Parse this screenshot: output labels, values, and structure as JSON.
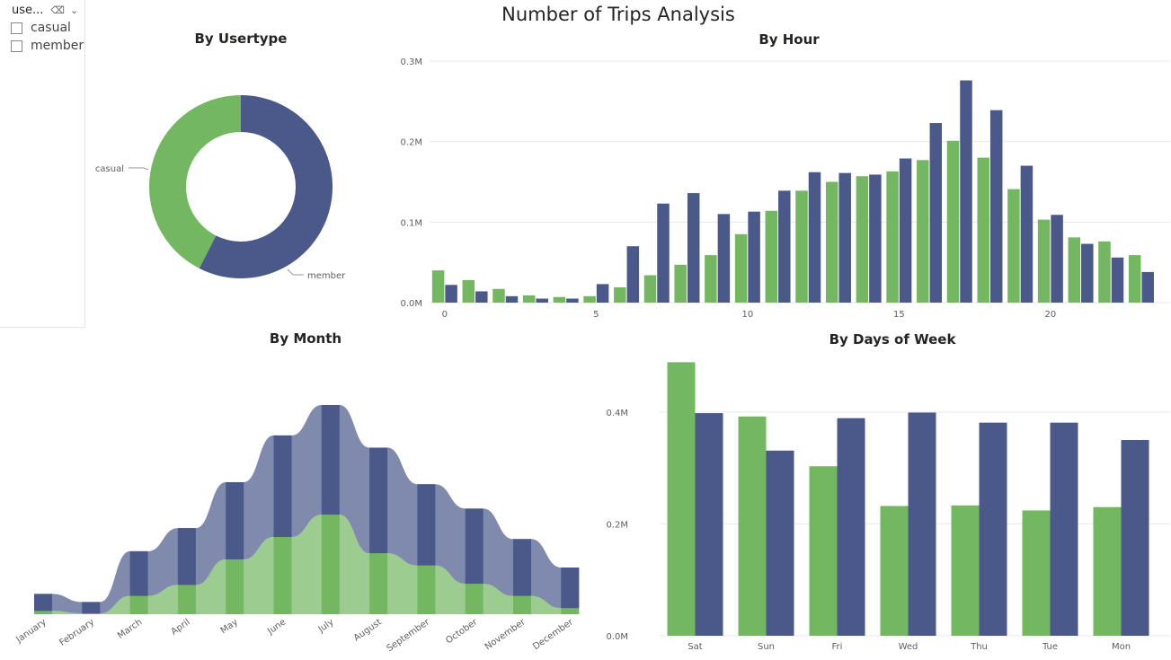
{
  "report": {
    "title": "Number of Trips Analysis"
  },
  "slicer": {
    "header": "use...",
    "items": [
      "casual",
      "member"
    ]
  },
  "colors": {
    "casual": "#73b761",
    "member": "#4a588a",
    "grid": "#e9e9e9",
    "axis_text": "#605e5c"
  },
  "chart_data": [
    {
      "id": "usertype",
      "type": "pie",
      "title": "By Usertype",
      "labels": [
        "casual",
        "member"
      ],
      "values": [
        2.55,
        3.45
      ],
      "legend": "data-labels"
    },
    {
      "id": "hour",
      "type": "bar",
      "title": "By Hour",
      "x": [
        0,
        1,
        2,
        3,
        4,
        5,
        6,
        7,
        8,
        9,
        10,
        11,
        12,
        13,
        14,
        15,
        16,
        17,
        18,
        19,
        20,
        21,
        22,
        23
      ],
      "xticks": [
        0,
        5,
        10,
        15,
        20
      ],
      "yticks": [
        "0.0M",
        "0.1M",
        "0.2M",
        "0.3M"
      ],
      "ylim": [
        0,
        0.3
      ],
      "series": [
        {
          "name": "casual",
          "values": [
            0.04,
            0.028,
            0.017,
            0.009,
            0.007,
            0.008,
            0.019,
            0.034,
            0.047,
            0.059,
            0.085,
            0.114,
            0.139,
            0.15,
            0.157,
            0.163,
            0.177,
            0.201,
            0.18,
            0.141,
            0.103,
            0.081,
            0.076,
            0.059
          ]
        },
        {
          "name": "member",
          "values": [
            0.022,
            0.014,
            0.008,
            0.005,
            0.005,
            0.023,
            0.07,
            0.123,
            0.136,
            0.11,
            0.113,
            0.139,
            0.162,
            0.161,
            0.159,
            0.179,
            0.223,
            0.276,
            0.239,
            0.17,
            0.109,
            0.073,
            0.056,
            0.038
          ]
        }
      ]
    },
    {
      "id": "month",
      "type": "area",
      "title": "By Month",
      "categories": [
        "January",
        "February",
        "March",
        "April",
        "May",
        "June",
        "July",
        "August",
        "September",
        "October",
        "November",
        "December"
      ],
      "series": [
        {
          "name": "casual",
          "values": [
            8000,
            2000,
            45000,
            72000,
            135000,
            190000,
            245000,
            150000,
            120000,
            75000,
            45000,
            15000
          ]
        },
        {
          "name": "member",
          "values": [
            42000,
            28000,
            110000,
            140000,
            190000,
            250000,
            270000,
            260000,
            200000,
            185000,
            140000,
            100000
          ]
        }
      ]
    },
    {
      "id": "weekday",
      "type": "bar",
      "title": "By Days of Week",
      "categories": [
        "Sat",
        "Sun",
        "Fri",
        "Wed",
        "Thu",
        "Tue",
        "Mon"
      ],
      "yticks": [
        "0.0M",
        "0.2M",
        "0.4M"
      ],
      "ylim": [
        0,
        0.48
      ],
      "series": [
        {
          "name": "casual",
          "values": [
            0.489,
            0.392,
            0.303,
            0.232,
            0.233,
            0.224,
            0.23
          ]
        },
        {
          "name": "member",
          "values": [
            0.398,
            0.331,
            0.389,
            0.399,
            0.381,
            0.381,
            0.35
          ]
        }
      ]
    }
  ]
}
